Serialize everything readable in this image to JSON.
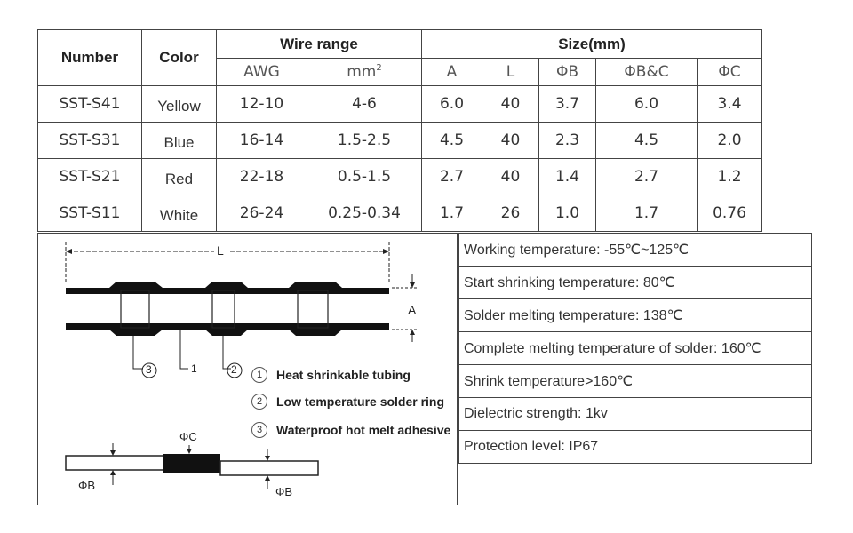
{
  "spec_table": {
    "header": {
      "number": "Number",
      "color": "Color",
      "wire_range": "Wire range",
      "size": "Size(mm)"
    },
    "subheader": {
      "awg": "AWG",
      "mm2": "mm",
      "mm2_sup": "2",
      "a": "A",
      "l": "L",
      "phib": "ΦB",
      "phibc": "ΦB&C",
      "phic": "ΦC"
    },
    "rows": [
      {
        "number": "SST-S41",
        "color": "Yellow",
        "awg": "12-10",
        "mm2": "4-6",
        "a": "6.0",
        "l": "40",
        "phib": "3.7",
        "phibc": "6.0",
        "phic": "3.4"
      },
      {
        "number": "SST-S31",
        "color": "Blue",
        "awg": "16-14",
        "mm2": "1.5-2.5",
        "a": "4.5",
        "l": "40",
        "phib": "2.3",
        "phibc": "4.5",
        "phic": "2.0"
      },
      {
        "number": "SST-S21",
        "color": "Red",
        "awg": "22-18",
        "mm2": "0.5-1.5",
        "a": "2.7",
        "l": "40",
        "phib": "1.4",
        "phibc": "2.7",
        "phic": "1.2"
      },
      {
        "number": "SST-S11",
        "color": "White",
        "awg": "26-24",
        "mm2": "0.25-0.34",
        "a": "1.7",
        "l": "26",
        "phib": "1.0",
        "phibc": "1.7",
        "phic": "0.76"
      }
    ]
  },
  "diagram": {
    "length_label": "L",
    "a_label": "A",
    "part_labels": [
      "3",
      "1",
      "2"
    ],
    "legend": [
      {
        "num": "1",
        "text": "Heat shrinkable tubing"
      },
      {
        "num": "2",
        "text": "Low temperature solder ring"
      },
      {
        "num": "3",
        "text": "Waterproof hot melt adhesive"
      }
    ],
    "phic_label": "ΦC",
    "phib_left_label": "ΦB",
    "phib_right_label": "ΦB"
  },
  "properties": [
    "Working temperature: -55℃~125℃",
    "Start shrinking temperature: 80℃",
    "Solder melting temperature: 138℃",
    "Complete melting temperature of solder: 160℃",
    "Shrink temperature>160℃",
    "Dielectric strength: 1kv",
    "Protection level: IP67"
  ]
}
